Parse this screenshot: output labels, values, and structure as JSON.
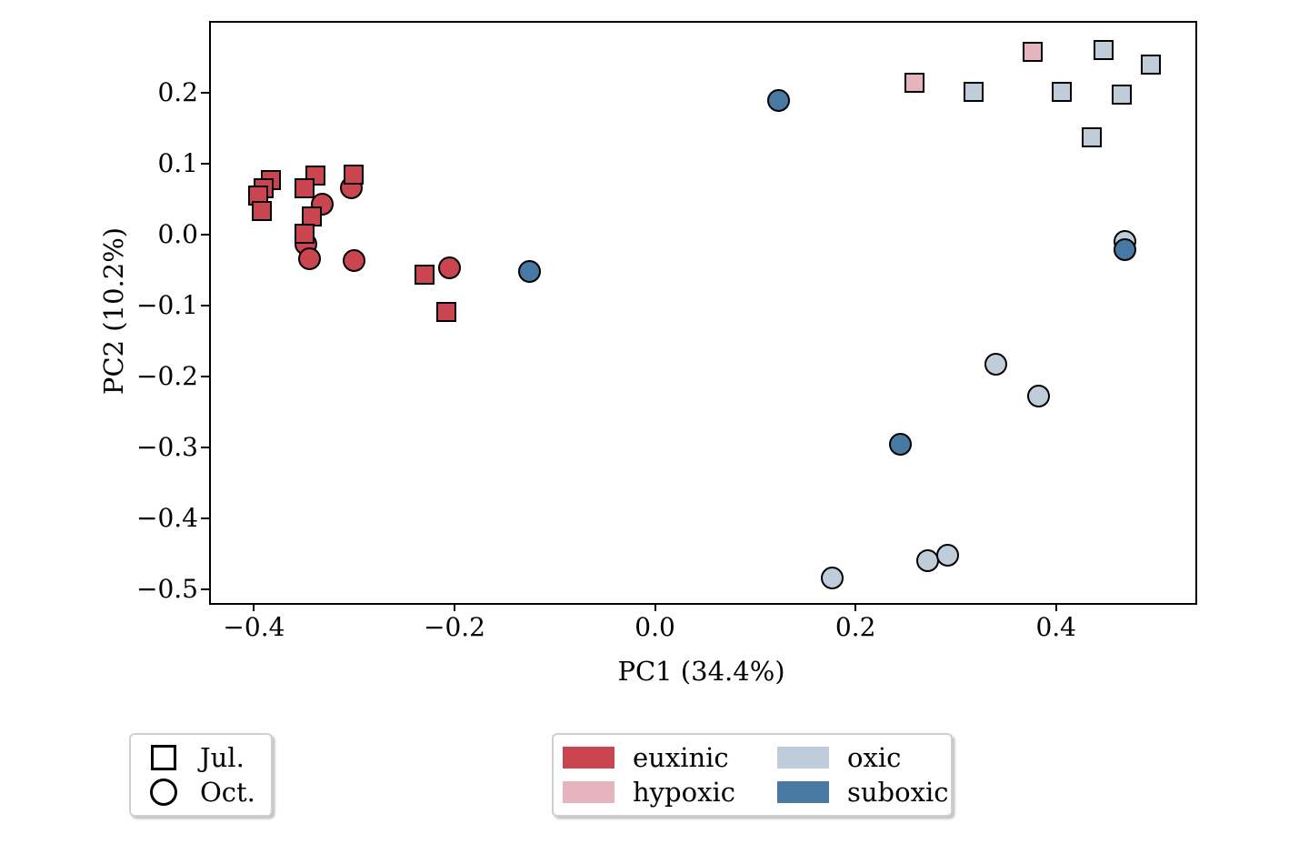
{
  "chart_data": {
    "type": "scatter",
    "title": "",
    "xlabel": "PC1 (34.4%)",
    "ylabel": "PC2 (10.2%)",
    "xlim": [
      -0.443,
      0.539
    ],
    "ylim": [
      -0.519,
      0.299
    ],
    "xticks": [
      -0.4,
      -0.2,
      0.0,
      0.2,
      0.4
    ],
    "yticks": [
      0.2,
      0.1,
      0.0,
      -0.1,
      -0.2,
      -0.3,
      -0.4,
      -0.5
    ],
    "grid": false,
    "legend_position": "below-plot",
    "marker_edge_color": "#000000",
    "month_legend": {
      "items": [
        {
          "label": "Jul.",
          "marker": "square"
        },
        {
          "label": "Oct.",
          "marker": "circle"
        }
      ]
    },
    "condition_legend": {
      "items": [
        {
          "label": "euxinic",
          "color": "#c9454f"
        },
        {
          "label": "hypoxic",
          "color": "#e6b4bc"
        },
        {
          "label": "oxic",
          "color": "#bfcdda"
        },
        {
          "label": "suboxic",
          "color": "#4879a4"
        }
      ]
    },
    "points": [
      {
        "x": -0.332,
        "y": 0.043,
        "month": "Oct.",
        "condition": "euxinic"
      },
      {
        "x": -0.348,
        "y": -0.013,
        "month": "Oct.",
        "condition": "euxinic"
      },
      {
        "x": -0.345,
        "y": -0.034,
        "month": "Oct.",
        "condition": "euxinic"
      },
      {
        "x": -0.303,
        "y": 0.066,
        "month": "Oct.",
        "condition": "euxinic"
      },
      {
        "x": -0.3,
        "y": -0.036,
        "month": "Oct.",
        "condition": "euxinic"
      },
      {
        "x": -0.205,
        "y": -0.047,
        "month": "Oct.",
        "condition": "euxinic"
      },
      {
        "x": 0.34,
        "y": -0.182,
        "month": "Oct.",
        "condition": "oxic"
      },
      {
        "x": 0.383,
        "y": -0.227,
        "month": "Oct.",
        "condition": "oxic"
      },
      {
        "x": 0.272,
        "y": -0.46,
        "month": "Oct.",
        "condition": "oxic"
      },
      {
        "x": 0.292,
        "y": -0.452,
        "month": "Oct.",
        "condition": "oxic"
      },
      {
        "x": 0.177,
        "y": -0.484,
        "month": "Oct.",
        "condition": "oxic"
      },
      {
        "x": 0.469,
        "y": -0.009,
        "month": "Oct.",
        "condition": "oxic"
      },
      {
        "x": -0.125,
        "y": -0.052,
        "month": "Oct.",
        "condition": "suboxic"
      },
      {
        "x": 0.123,
        "y": 0.189,
        "month": "Oct.",
        "condition": "suboxic"
      },
      {
        "x": 0.245,
        "y": -0.295,
        "month": "Oct.",
        "condition": "suboxic"
      },
      {
        "x": 0.469,
        "y": -0.021,
        "month": "Oct.",
        "condition": "suboxic"
      },
      {
        "x": -0.383,
        "y": 0.077,
        "month": "Jul.",
        "condition": "euxinic"
      },
      {
        "x": -0.39,
        "y": 0.066,
        "month": "Jul.",
        "condition": "euxinic"
      },
      {
        "x": -0.396,
        "y": 0.056,
        "month": "Jul.",
        "condition": "euxinic"
      },
      {
        "x": -0.392,
        "y": 0.034,
        "month": "Jul.",
        "condition": "euxinic"
      },
      {
        "x": -0.339,
        "y": 0.083,
        "month": "Jul.",
        "condition": "euxinic"
      },
      {
        "x": -0.35,
        "y": 0.066,
        "month": "Jul.",
        "condition": "euxinic"
      },
      {
        "x": -0.342,
        "y": 0.026,
        "month": "Jul.",
        "condition": "euxinic"
      },
      {
        "x": -0.35,
        "y": 0.002,
        "month": "Jul.",
        "condition": "euxinic"
      },
      {
        "x": -0.301,
        "y": 0.085,
        "month": "Jul.",
        "condition": "euxinic"
      },
      {
        "x": -0.23,
        "y": -0.056,
        "month": "Jul.",
        "condition": "euxinic"
      },
      {
        "x": -0.208,
        "y": -0.109,
        "month": "Jul.",
        "condition": "euxinic"
      },
      {
        "x": 0.259,
        "y": 0.215,
        "month": "Jul.",
        "condition": "hypoxic"
      },
      {
        "x": 0.377,
        "y": 0.258,
        "month": "Jul.",
        "condition": "hypoxic"
      },
      {
        "x": 0.318,
        "y": 0.201,
        "month": "Jul.",
        "condition": "oxic"
      },
      {
        "x": 0.406,
        "y": 0.202,
        "month": "Jul.",
        "condition": "oxic"
      },
      {
        "x": 0.447,
        "y": 0.261,
        "month": "Jul.",
        "condition": "oxic"
      },
      {
        "x": 0.466,
        "y": 0.198,
        "month": "Jul.",
        "condition": "oxic"
      },
      {
        "x": 0.495,
        "y": 0.24,
        "month": "Jul.",
        "condition": "oxic"
      },
      {
        "x": 0.436,
        "y": 0.138,
        "month": "Jul.",
        "condition": "oxic"
      }
    ]
  }
}
